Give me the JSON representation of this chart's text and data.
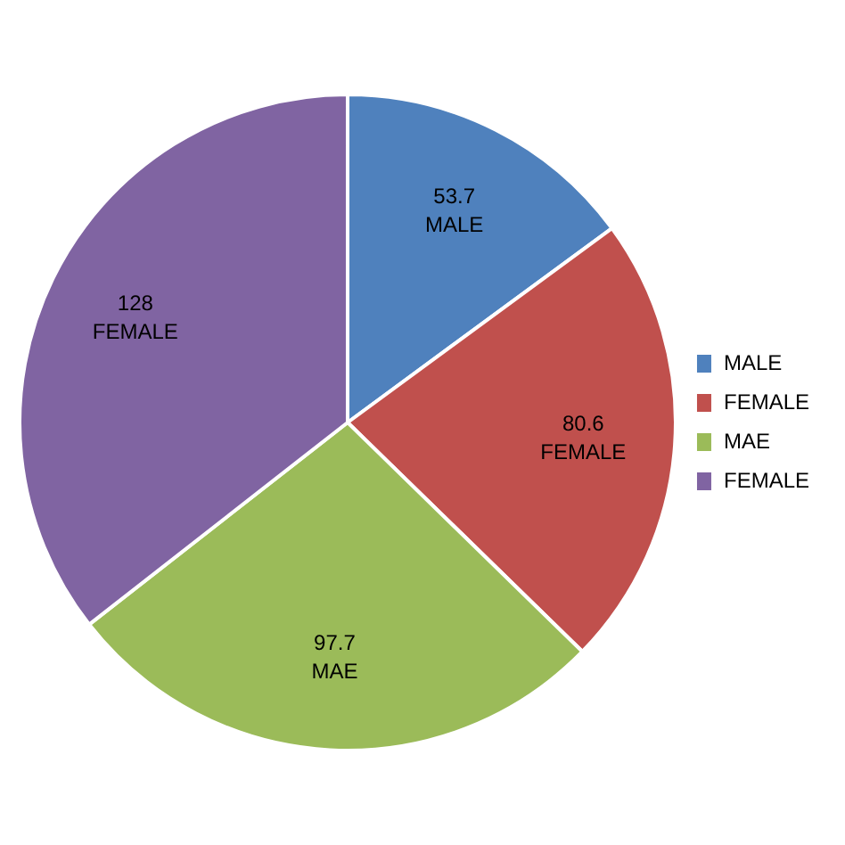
{
  "chart_data": {
    "type": "pie",
    "categories": [
      "MALE",
      "FEMALE",
      "MAE",
      "FEMALE"
    ],
    "values": [
      53.7,
      80.6,
      97.7,
      128
    ],
    "colors": [
      "#4f81bd",
      "#c0504d",
      "#9bbb59",
      "#8064a2"
    ],
    "data_labels": true,
    "legend": "right"
  }
}
